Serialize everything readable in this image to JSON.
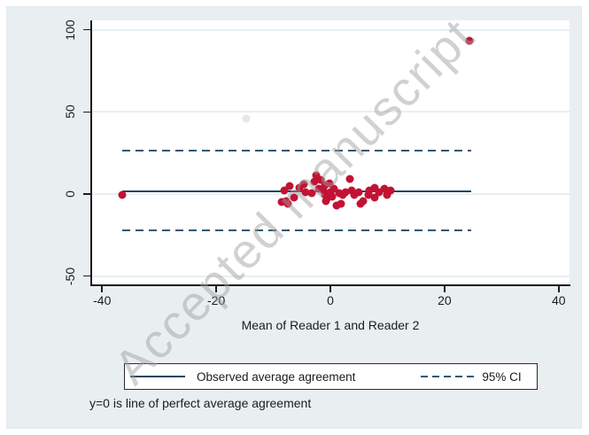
{
  "watermark": "Accepted manuscript",
  "caption": "y=0 is line of perfect average agreement",
  "legend": {
    "observed_label": "Observed average agreement",
    "ci_label": "95% CI"
  },
  "chart_data": {
    "type": "scatter",
    "title": "",
    "xlabel": "Mean of Reader 1 and Reader 2",
    "ylabel": "",
    "xlim": [
      -41.9,
      41.9
    ],
    "ylim": [
      -55.6,
      105.8
    ],
    "x_ticks": [
      -40,
      -20,
      0,
      20,
      40
    ],
    "y_ticks": [
      100,
      50,
      0,
      -50
    ],
    "grid": "horizontal-only",
    "gridline_color": "#e9eff1",
    "legend_position": "bottom",
    "point_color": "#c11334",
    "line_color": "#1a4662",
    "ci_color": "#2d5878",
    "reference_lines": [
      {
        "name": "observed-average-agreement",
        "y": 1.5,
        "x_start": -36.5,
        "x_end": 24.7,
        "style": "solid",
        "color": "#1a4662"
      },
      {
        "name": "ci-upper",
        "y": 26.4,
        "x_start": -36.5,
        "x_end": 24.7,
        "style": "dashed",
        "color": "#2d5878"
      },
      {
        "name": "ci-lower",
        "y": -22.1,
        "x_start": -36.5,
        "x_end": 24.7,
        "style": "dashed",
        "color": "#2d5878"
      }
    ],
    "series": [
      {
        "name": "reader-differences",
        "color": "#c11334",
        "points": [
          [
            -36.5,
            -0.5
          ],
          [
            -8.5,
            -4.9
          ],
          [
            -8.0,
            2.2
          ],
          [
            -7.8,
            -4.3
          ],
          [
            -7.5,
            -5.9
          ],
          [
            -7.2,
            4.9
          ],
          [
            -6.4,
            -2.2
          ],
          [
            -5.5,
            3.8
          ],
          [
            -4.7,
            5.9
          ],
          [
            -4.4,
            1.1
          ],
          [
            -3.3,
            0.5
          ],
          [
            -2.8,
            7.6
          ],
          [
            -2.5,
            11.4
          ],
          [
            -2.0,
            3.2
          ],
          [
            -1.7,
            8.6
          ],
          [
            -1.3,
            2.2
          ],
          [
            -1.0,
            5.5
          ],
          [
            -0.9,
            -0.5
          ],
          [
            -0.8,
            -4.3
          ],
          [
            -0.5,
            -2.2
          ],
          [
            -0.2,
            6.5
          ],
          [
            0.0,
            1.1
          ],
          [
            0.3,
            -1.5
          ],
          [
            0.6,
            3.2
          ],
          [
            1.1,
            -7.0
          ],
          [
            1.5,
            0.5
          ],
          [
            1.9,
            -5.9
          ],
          [
            2.2,
            -0.5
          ],
          [
            2.7,
            1.1
          ],
          [
            3.4,
            9.2
          ],
          [
            3.8,
            2.2
          ],
          [
            4.2,
            -0.5
          ],
          [
            5.0,
            1.1
          ],
          [
            5.3,
            -5.9
          ],
          [
            5.8,
            -4.3
          ],
          [
            6.6,
            -0.5
          ],
          [
            6.9,
            2.2
          ],
          [
            7.7,
            -2.2
          ],
          [
            7.8,
            3.8
          ],
          [
            8.6,
            1.1
          ],
          [
            9.4,
            3.2
          ],
          [
            10.0,
            -0.5
          ],
          [
            10.5,
            2.2
          ],
          [
            24.4,
            93.5
          ]
        ]
      },
      {
        "name": "faint-point",
        "color": "#e9e6e6",
        "points": [
          [
            -14.8,
            46.0
          ]
        ]
      }
    ]
  }
}
